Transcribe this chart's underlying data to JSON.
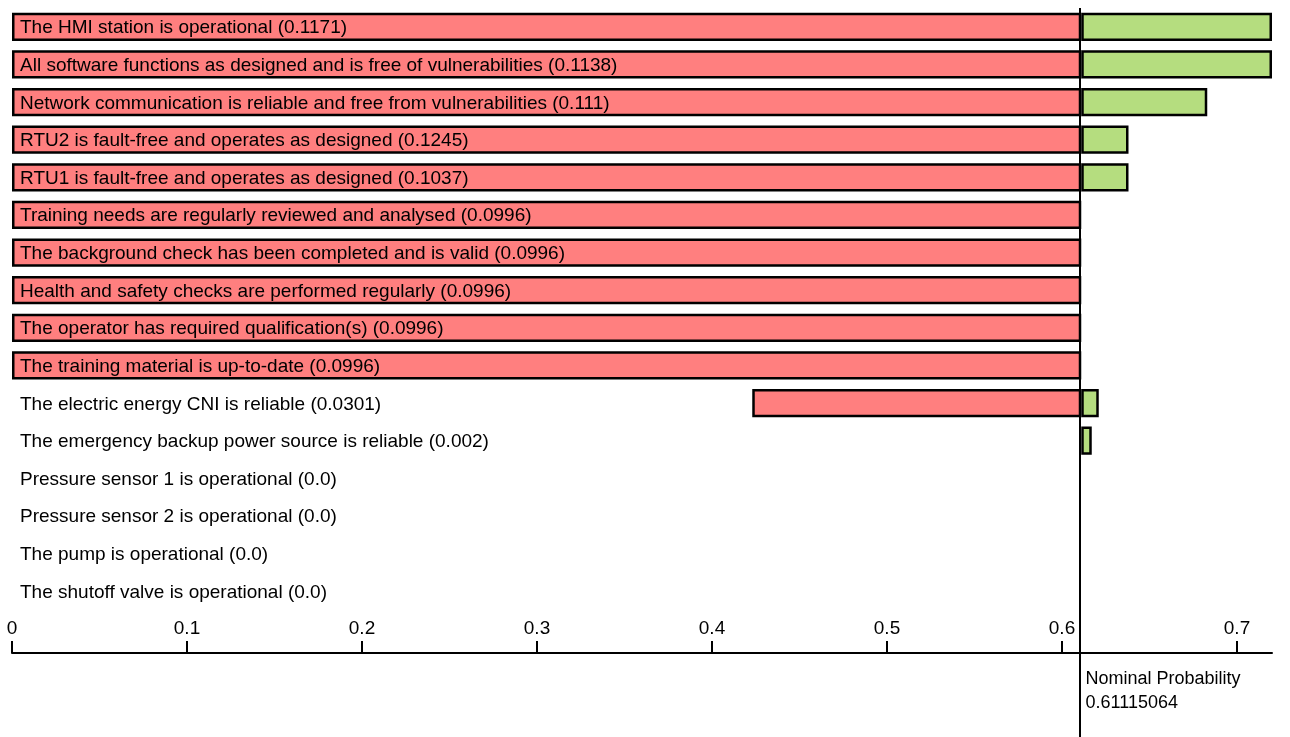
{
  "chart_data": {
    "type": "bar",
    "orientation": "horizontal",
    "categories": [
      "The HMI station is operational (0.1171)",
      "All software functions as designed and is free of vulnerabilities (0.1138)",
      "Network communication is reliable and free from vulnerabilities (0.111)",
      "RTU2 is fault-free and operates as designed (0.1245)",
      "RTU1 is fault-free and operates as designed (0.1037)",
      "Training needs are regularly reviewed and analysed (0.0996)",
      "The background check has been completed and is valid (0.0996)",
      "Health and safety checks are performed regularly (0.0996)",
      "The operator has required qualification(s) (0.0996)",
      "The training material is up-to-date (0.0996)",
      "The electric energy CNI is reliable (0.0301)",
      "The emergency backup power source is reliable (0.002)",
      "Pressure sensor 1 is operational (0.0)",
      "Pressure sensor 2 is operational (0.0)",
      "The pump is operational (0.0)",
      "The shutoff valve is operational (0.0)"
    ],
    "series": [
      {
        "color": "#ff7f7f",
        "base": [
          0,
          0,
          0,
          0,
          0,
          0,
          0,
          0,
          0,
          0,
          0.423,
          null,
          null,
          null,
          null,
          null
        ],
        "values": [
          0.611,
          0.611,
          0.611,
          0.611,
          0.611,
          0.611,
          0.611,
          0.611,
          0.611,
          0.611,
          0.188,
          null,
          null,
          null,
          null,
          null
        ]
      },
      {
        "color": "#b5dd7f",
        "base": [
          0.611,
          0.611,
          0.611,
          0.611,
          0.611,
          null,
          null,
          null,
          null,
          null,
          0.611,
          0.611,
          null,
          null,
          null,
          null
        ],
        "values": [
          0.109,
          0.109,
          0.072,
          0.027,
          0.027,
          null,
          null,
          null,
          null,
          null,
          0.01,
          0.006,
          null,
          null,
          null,
          null
        ]
      }
    ],
    "xlim": [
      0,
      0.72
    ],
    "xticks": [
      0,
      0.1,
      0.2,
      0.3,
      0.4,
      0.5,
      0.6,
      0.7
    ],
    "ref_lines": [
      {
        "axis": "x",
        "value": 0.61115064,
        "label": "Nominal Probability 0.61115064"
      }
    ],
    "grid": false
  }
}
